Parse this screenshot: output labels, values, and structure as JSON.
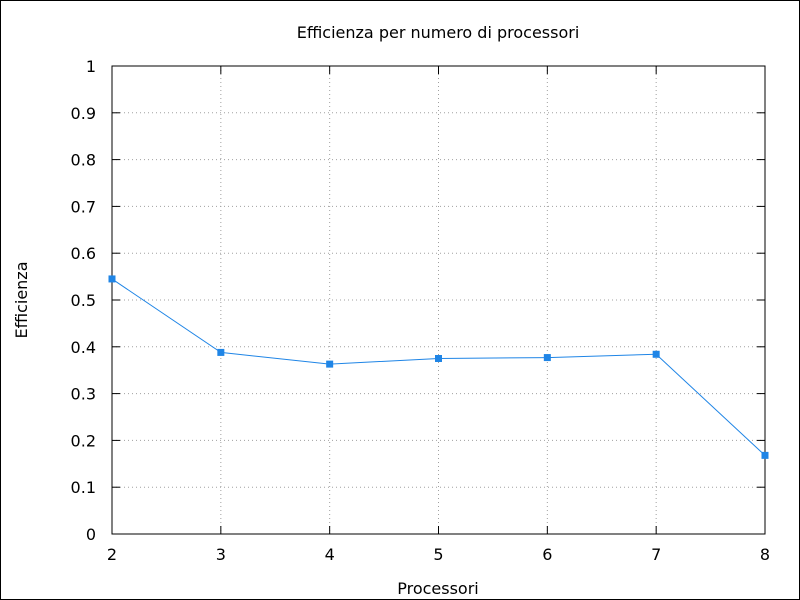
{
  "chart_data": {
    "type": "line",
    "title": "Efficienza per numero di processori",
    "xlabel": "Processori",
    "ylabel": "Efficienza",
    "xlim": [
      2,
      8
    ],
    "ylim": [
      0,
      1
    ],
    "x_ticks": [
      "2",
      "3",
      "4",
      "5",
      "6",
      "7",
      "8"
    ],
    "y_ticks": [
      "0",
      "0.1",
      "0.2",
      "0.3",
      "0.4",
      "0.5",
      "0.6",
      "0.7",
      "0.8",
      "0.9",
      "1"
    ],
    "grid": true,
    "series": [
      {
        "color": "#1f85e6",
        "marker": "square",
        "x": [
          2,
          3,
          4,
          5,
          6,
          7,
          8
        ],
        "values": [
          0.545,
          0.388,
          0.363,
          0.375,
          0.377,
          0.384,
          0.168
        ]
      }
    ]
  }
}
